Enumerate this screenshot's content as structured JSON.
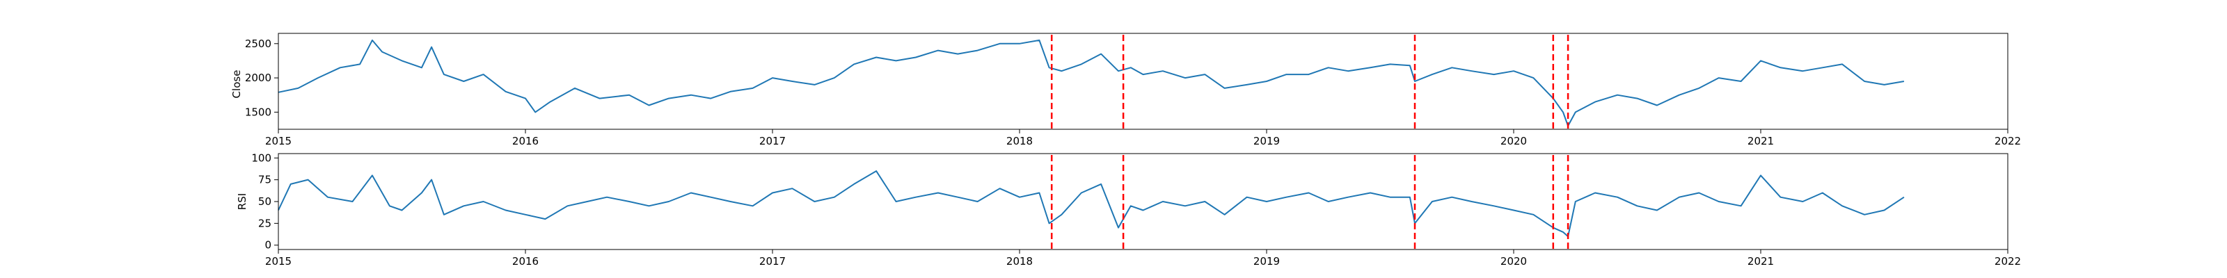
{
  "figure": {
    "background": "#ffffff",
    "line_color": "#1f77b4",
    "event_line_color": "#ff0000",
    "event_line_style": "dashed"
  },
  "chart_data": [
    {
      "type": "line",
      "id": "close",
      "ylabel": "Close",
      "xlabel": "",
      "title": "",
      "xlim": [
        2015.0,
        2022.0
      ],
      "ylim": [
        1250,
        2650
      ],
      "x_ticks": [
        "2015",
        "2016",
        "2017",
        "2018",
        "2019",
        "2020",
        "2021",
        "2022"
      ],
      "y_ticks": [
        1500,
        2000,
        2500
      ],
      "grid": false,
      "vlines": [
        2018.13,
        2018.42,
        2019.6,
        2020.16,
        2020.22
      ],
      "series": [
        {
          "x": [
            2015.0,
            2015.08,
            2015.16,
            2015.25,
            2015.33,
            2015.38,
            2015.42,
            2015.5,
            2015.58,
            2015.62,
            2015.67,
            2015.75,
            2015.83,
            2015.92,
            2016.0,
            2016.04,
            2016.1,
            2016.2,
            2016.3,
            2016.42,
            2016.5,
            2016.58,
            2016.67,
            2016.75,
            2016.83,
            2016.92,
            2017.0,
            2017.08,
            2017.17,
            2017.25,
            2017.33,
            2017.42,
            2017.5,
            2017.58,
            2017.67,
            2017.75,
            2017.83,
            2017.92,
            2018.0,
            2018.08,
            2018.12,
            2018.17,
            2018.25,
            2018.33,
            2018.4,
            2018.45,
            2018.5,
            2018.58,
            2018.67,
            2018.75,
            2018.83,
            2018.92,
            2019.0,
            2019.08,
            2019.17,
            2019.25,
            2019.33,
            2019.42,
            2019.5,
            2019.58,
            2019.6,
            2019.67,
            2019.75,
            2019.83,
            2019.92,
            2020.0,
            2020.08,
            2020.16,
            2020.2,
            2020.22,
            2020.25,
            2020.33,
            2020.42,
            2020.5,
            2020.58,
            2020.67,
            2020.75,
            2020.83,
            2020.92,
            2021.0,
            2021.08,
            2021.17,
            2021.25,
            2021.33,
            2021.42,
            2021.5,
            2021.58
          ],
          "values": [
            1790,
            1850,
            2000,
            2150,
            2200,
            2550,
            2380,
            2250,
            2150,
            2450,
            2050,
            1950,
            2050,
            1800,
            1700,
            1500,
            1650,
            1850,
            1700,
            1750,
            1600,
            1700,
            1750,
            1700,
            1800,
            1850,
            2000,
            1950,
            1900,
            2000,
            2200,
            2300,
            2250,
            2300,
            2400,
            2350,
            2400,
            2500,
            2500,
            2550,
            2150,
            2100,
            2200,
            2350,
            2100,
            2150,
            2050,
            2100,
            2000,
            2050,
            1850,
            1900,
            1950,
            2050,
            2050,
            2150,
            2100,
            2150,
            2200,
            2180,
            1950,
            2050,
            2150,
            2100,
            2050,
            2100,
            2000,
            1700,
            1500,
            1300,
            1500,
            1650,
            1750,
            1700,
            1600,
            1750,
            1850,
            2000,
            1950,
            2250,
            2150,
            2100,
            2150,
            2200,
            1950,
            1900,
            1950
          ]
        }
      ]
    },
    {
      "type": "line",
      "id": "rsi",
      "ylabel": "RSI",
      "xlabel": "",
      "title": "",
      "xlim": [
        2015.0,
        2022.0
      ],
      "ylim": [
        -5,
        105
      ],
      "x_ticks": [
        "2015",
        "2016",
        "2017",
        "2018",
        "2019",
        "2020",
        "2021",
        "2022"
      ],
      "y_ticks": [
        0,
        25,
        50,
        75,
        100
      ],
      "grid": false,
      "vlines": [
        2018.13,
        2018.42,
        2019.6,
        2020.16,
        2020.22
      ],
      "series": [
        {
          "x": [
            2015.0,
            2015.05,
            2015.12,
            2015.2,
            2015.3,
            2015.38,
            2015.45,
            2015.5,
            2015.58,
            2015.62,
            2015.67,
            2015.75,
            2015.83,
            2015.92,
            2016.0,
            2016.08,
            2016.17,
            2016.25,
            2016.33,
            2016.42,
            2016.5,
            2016.58,
            2016.67,
            2016.75,
            2016.83,
            2016.92,
            2017.0,
            2017.08,
            2017.17,
            2017.25,
            2017.33,
            2017.42,
            2017.5,
            2017.58,
            2017.67,
            2017.75,
            2017.83,
            2017.92,
            2018.0,
            2018.08,
            2018.12,
            2018.17,
            2018.25,
            2018.33,
            2018.4,
            2018.45,
            2018.5,
            2018.58,
            2018.67,
            2018.75,
            2018.83,
            2018.92,
            2019.0,
            2019.08,
            2019.17,
            2019.25,
            2019.33,
            2019.42,
            2019.5,
            2019.58,
            2019.6,
            2019.67,
            2019.75,
            2019.83,
            2019.92,
            2020.0,
            2020.08,
            2020.16,
            2020.2,
            2020.22,
            2020.25,
            2020.33,
            2020.42,
            2020.5,
            2020.58,
            2020.67,
            2020.75,
            2020.83,
            2020.92,
            2021.0,
            2021.08,
            2021.17,
            2021.25,
            2021.33,
            2021.42,
            2021.5,
            2021.58
          ],
          "values": [
            40,
            70,
            75,
            55,
            50,
            80,
            45,
            40,
            60,
            75,
            35,
            45,
            50,
            40,
            35,
            30,
            45,
            50,
            55,
            50,
            45,
            50,
            60,
            55,
            50,
            45,
            60,
            65,
            50,
            55,
            70,
            85,
            50,
            55,
            60,
            55,
            50,
            65,
            55,
            60,
            25,
            35,
            60,
            70,
            20,
            45,
            40,
            50,
            45,
            50,
            35,
            55,
            50,
            55,
            60,
            50,
            55,
            60,
            55,
            55,
            25,
            50,
            55,
            50,
            45,
            40,
            35,
            20,
            15,
            10,
            50,
            60,
            55,
            45,
            40,
            55,
            60,
            50,
            45,
            80,
            55,
            50,
            60,
            45,
            35,
            40,
            55
          ]
        }
      ]
    }
  ]
}
